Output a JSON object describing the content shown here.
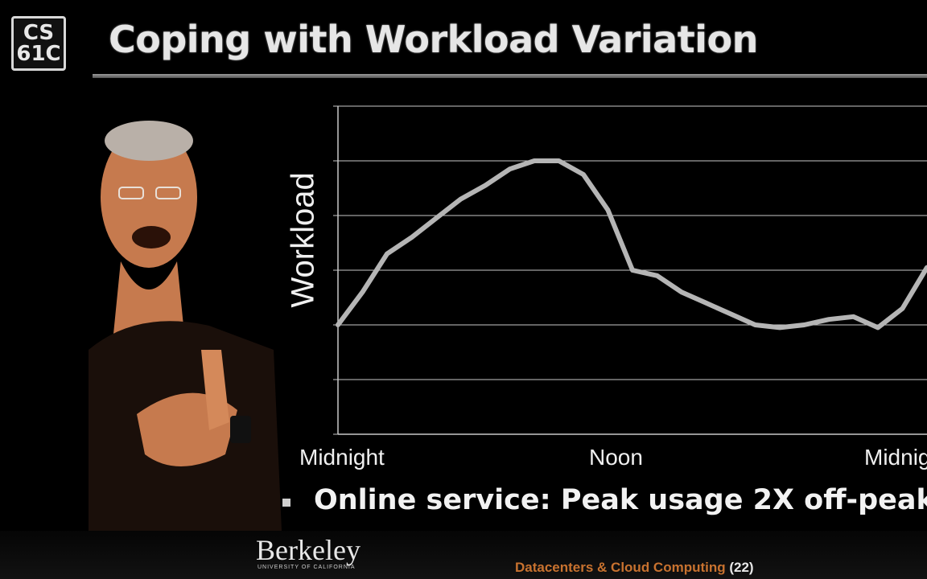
{
  "logo": {
    "line1": "CS",
    "line2": "61C"
  },
  "slide": {
    "title": "Coping with Workload Variation",
    "bullet": "Online service: Peak usage 2X off-peak"
  },
  "footer": {
    "institution": "Berkeley",
    "institution_sub": "UNIVERSITY OF CALIFORNIA",
    "topic": "Datacenters & Cloud Computing",
    "page": "(22)"
  },
  "colors": {
    "accent": "#c8722f",
    "curve": "#b5b5b5",
    "grid": "#c8c8c8"
  },
  "chart_data": {
    "type": "line",
    "ylabel": "Workload",
    "xlabel": "",
    "title": "",
    "x_ticks": [
      "Midnight",
      "Noon",
      "Midnight"
    ],
    "x_range": [
      0,
      24
    ],
    "ylim": [
      0,
      6
    ],
    "grid": true,
    "series": [
      {
        "values_x": [
          0,
          1,
          2,
          3,
          4,
          5,
          6,
          7,
          8,
          9,
          10,
          11,
          12,
          13,
          14,
          15,
          16,
          17,
          18,
          19,
          20,
          21,
          22,
          23,
          24
        ],
        "values_y": [
          2.0,
          2.6,
          3.3,
          3.6,
          3.95,
          4.3,
          4.55,
          4.85,
          5.0,
          5.0,
          4.75,
          4.1,
          3.0,
          2.9,
          2.6,
          2.4,
          2.2,
          2.0,
          1.95,
          2.0,
          2.1,
          2.15,
          1.95,
          2.3,
          3.05
        ]
      }
    ]
  }
}
